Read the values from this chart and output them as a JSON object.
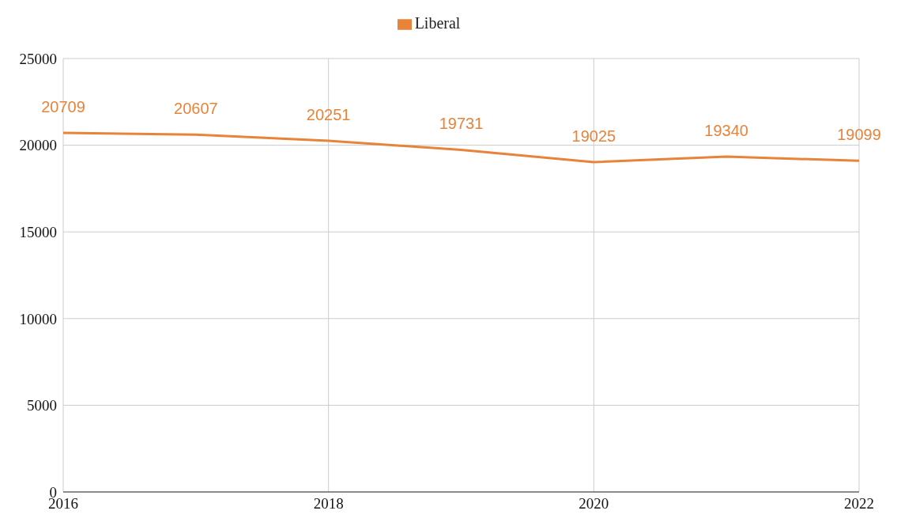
{
  "chart_data": {
    "type": "line",
    "x": [
      2016,
      2017,
      2018,
      2019,
      2020,
      2021,
      2022
    ],
    "series": [
      {
        "name": "Liberal",
        "color": "#e8833a",
        "values": [
          20709,
          20607,
          20251,
          19731,
          19025,
          19340,
          19099
        ]
      }
    ],
    "xlim": [
      2016,
      2022
    ],
    "xticks": [
      2016,
      2018,
      2020,
      2022
    ],
    "ylim": [
      0,
      25000
    ],
    "yticks": [
      0,
      5000,
      10000,
      15000,
      20000,
      25000
    ],
    "grid": true,
    "legend": "top",
    "data_labels": true,
    "marker": "none"
  }
}
